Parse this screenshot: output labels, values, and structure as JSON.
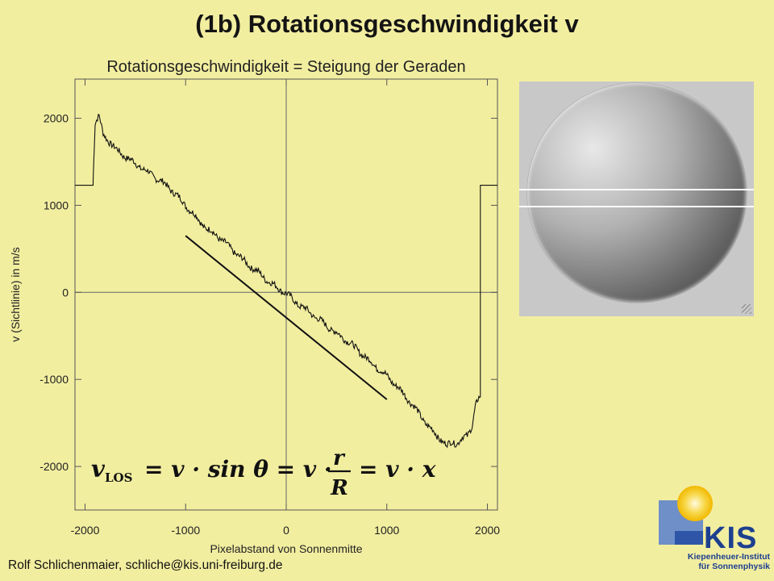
{
  "slide": {
    "title": "(1b) Rotationsgeschwindigkeit v",
    "footer": "Rolf Schlichenmaier, schliche@kis.uni-freiburg.de"
  },
  "formula": {
    "lhs_symbol": "v",
    "lhs_subscript": "LOS",
    "rhs1": "= v · sin θ = v ·",
    "fraction_numerator": "r",
    "fraction_denominator": "R",
    "rhs2": "= v · x"
  },
  "logo": {
    "acronym": "KIS",
    "line1": "Kiepenheuer-Institut",
    "line2": "für Sonnenphysik"
  },
  "colors": {
    "background": "#f2eea0",
    "plot_line": "#111111",
    "logo_blue": "#1d3f8f",
    "logo_sun": "#f5cc1a"
  },
  "chart_data": {
    "type": "line",
    "title": "Rotationsgeschwindigkeit = Steigung der Geraden",
    "xlabel": "Pixelabstand von Sonnenmitte",
    "ylabel": "v (Sichtlinie) in m/s",
    "xlim": [
      -2100,
      2100
    ],
    "ylim": [
      -2500,
      2450
    ],
    "xticks": [
      -2000,
      -1000,
      0,
      1000,
      2000
    ],
    "yticks": [
      -2000,
      -1000,
      0,
      1000,
      2000
    ],
    "grid": false,
    "series": [
      {
        "style": "noisy",
        "x": [
          -2100,
          -1920,
          -1920,
          -1900,
          -1860,
          -1820,
          -1750,
          -1700,
          -1600,
          -1500,
          -1400,
          -1300,
          -1200,
          -1100,
          -1000,
          -900,
          -800,
          -700,
          -600,
          -500,
          -400,
          -300,
          -200,
          -100,
          0,
          100,
          200,
          300,
          400,
          500,
          600,
          700,
          800,
          900,
          1000,
          1100,
          1200,
          1300,
          1400,
          1500,
          1600,
          1650,
          1700,
          1750,
          1800,
          1850,
          1880,
          1900,
          1930,
          1930,
          2100
        ],
        "y": [
          1230,
          1230,
          1300,
          1950,
          2020,
          1820,
          1720,
          1650,
          1560,
          1480,
          1400,
          1320,
          1240,
          1130,
          1000,
          870,
          740,
          660,
          560,
          450,
          340,
          250,
          150,
          60,
          -10,
          -120,
          -200,
          -290,
          -380,
          -470,
          -550,
          -650,
          -760,
          -860,
          -960,
          -1080,
          -1210,
          -1360,
          -1520,
          -1650,
          -1760,
          -1720,
          -1730,
          -1680,
          -1650,
          -1520,
          -1300,
          -1250,
          -1200,
          1230,
          1230
        ]
      },
      {
        "style": "straight",
        "x": [
          -1000,
          1000
        ],
        "y": [
          650,
          -1230
        ]
      }
    ]
  }
}
